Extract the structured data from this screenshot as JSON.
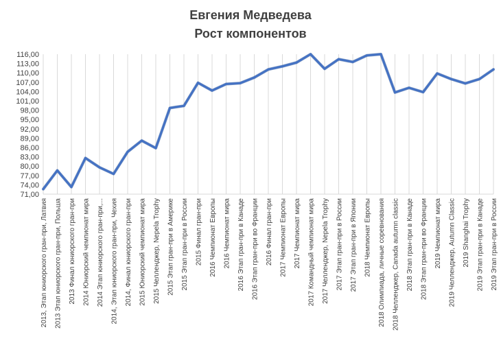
{
  "colors": {
    "line": "#4472C4",
    "grid": "#D9D9D9",
    "text": "#404040",
    "background": "#FFFFFF"
  },
  "chart_data": {
    "type": "line",
    "title": "Евгения Медведева",
    "subtitle": "Рост компонентов",
    "xlabel": "",
    "ylabel": "",
    "ylim": [
      71,
      116
    ],
    "yticks": [
      "71,00",
      "74,00",
      "77,00",
      "80,00",
      "83,00",
      "86,00",
      "89,00",
      "92,00",
      "95,00",
      "98,00",
      "101,00",
      "104,00",
      "107,00",
      "110,00",
      "113,00",
      "116,00"
    ],
    "grid": "vertical",
    "legend": "none",
    "categories": [
      "2013, Этап юниорского гран-при, Латвия",
      "2013 Этап юниорского гран-при, Польша",
      "2013 Финал юниорского гран-при",
      "2014 Юниорский чемпионат мира",
      "2014 Этап юниорского гран-при,...",
      "2014, Этап юниорского гран-при, Чехия",
      "2014, Финал юниорского гран-при",
      "2015 Юниорский чемпионат мира",
      "2015 Челленджер, Nepela Trophy",
      "2015 Этап гран-при в Америке",
      "2015 Этап гран-при в России",
      "2015 Финал гран-при",
      "2016 Чемпионат Европы",
      "2016 Чемпионат мира",
      "2016 Этап гран-при в Канаде",
      "2016 Этап гран-при во Франции",
      "2016 Финал гран-при",
      "2017 Чемпионат Европы",
      "2017 Чемпионат мира",
      "2017 Командный чемпионат мира",
      "2017 Челленджер, Nepela Trophy",
      "2017 Этап гран-при в России",
      "2017 Этап гран-при в Японии",
      "2018 Чемпионат Европы",
      "2018 Олимпиада, личные соревнования",
      "2018 Челленджер, Canada autumn classic",
      "2018 Этап гран-при в Канаде",
      "2018 Этап гран-при во Франции",
      "2019 Чемпионат мира",
      "2019 Челленджер, Autumn Classic",
      "2019 Shanghai Trophy",
      "2019 Этап гран-при в Канаде",
      "2019 Этап гран-при в России"
    ],
    "series": [
      {
        "values": [
          72.6,
          78.6,
          73.3,
          82.6,
          79.6,
          77.5,
          84.6,
          88.2,
          85.8,
          98.7,
          99.4,
          106.8,
          104.3,
          106.4,
          106.7,
          108.5,
          111.1,
          112.1,
          113.3,
          116.0,
          111.3,
          114.4,
          113.5,
          115.6,
          116.0,
          103.7,
          105.2,
          103.8,
          109.8,
          108.0,
          106.6,
          108.0,
          111.1
        ]
      }
    ]
  }
}
